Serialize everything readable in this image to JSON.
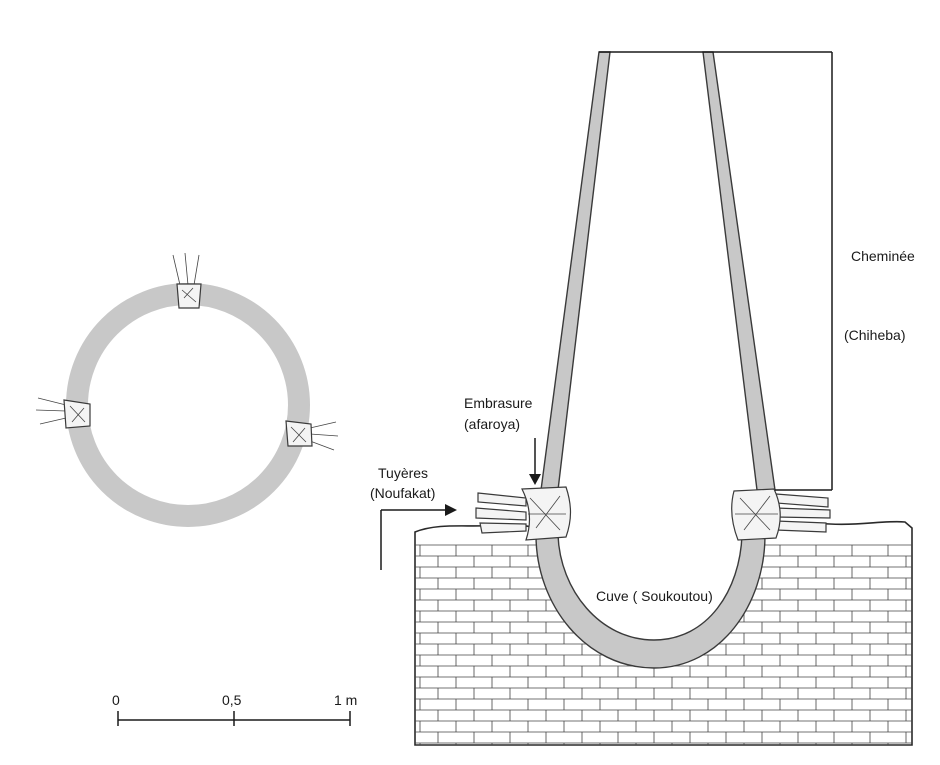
{
  "labels": {
    "chimney_name": "Cheminée",
    "chimney_local": "(Chiheba)",
    "embrasure_name": "Embrasure",
    "embrasure_local": "(afaroya)",
    "tuyere_name": "Tuyères",
    "tuyere_local": "(Noufakat)",
    "vat": "Cuve ( Soukoutou)"
  },
  "scale_bar": {
    "ticks": [
      "0",
      "0,5",
      "1 m"
    ]
  },
  "colors": {
    "wall_fill": "#c8c8c8",
    "outline": "#3a3a3a",
    "background": "#ffffff"
  }
}
